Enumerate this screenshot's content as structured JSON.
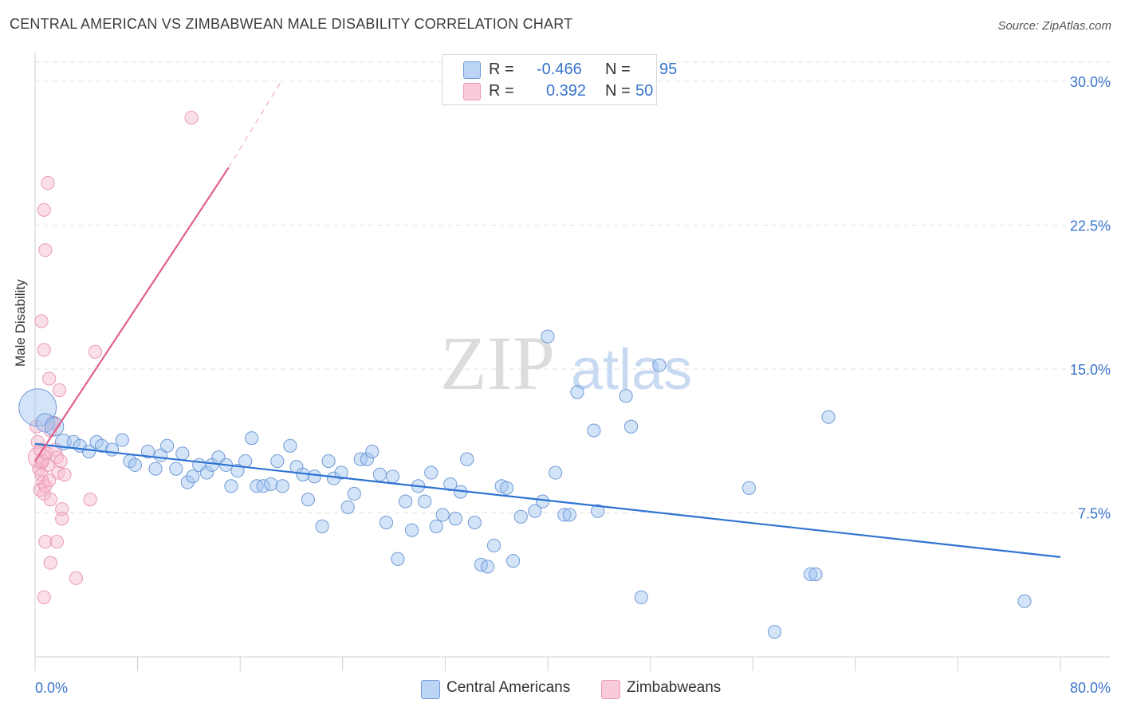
{
  "header": {
    "title": "CENTRAL AMERICAN VS ZIMBABWEAN MALE DISABILITY CORRELATION CHART",
    "source": "Source: ZipAtlas.com"
  },
  "watermark": {
    "zip": "ZIP",
    "atlas": "atlas"
  },
  "legend": {
    "r_label": "R =",
    "n_label": "N =",
    "rows": [
      {
        "name": "Central Americans",
        "r": "-0.466",
        "n": "95",
        "fill": "#a8c8f0",
        "stroke": "#5b8fd8"
      },
      {
        "name": "Zimbabweans",
        "r": "0.392",
        "n": "50",
        "fill": "#f8c0d0",
        "stroke": "#e888a8"
      }
    ]
  },
  "colors": {
    "blue_line": "#2e73d2",
    "pink_line": "#e0608a",
    "tick_label": "#3a74cc",
    "grid": "#e2e2e2"
  },
  "chart_data": {
    "type": "scatter",
    "title": "CENTRAL AMERICAN VS ZIMBABWEAN MALE DISABILITY CORRELATION CHART",
    "xlabel": "",
    "ylabel": "Male Disability",
    "xlim": [
      0,
      80
    ],
    "ylim": [
      0,
      31
    ],
    "x_tick_labels": [
      "0.0%",
      "80.0%"
    ],
    "y_ticks": [
      7.5,
      15.0,
      22.5,
      30.0
    ],
    "y_tick_labels": [
      "7.5%",
      "15.0%",
      "22.5%",
      "30.0%"
    ],
    "grid": true,
    "series": [
      {
        "name": "Central Americans",
        "color": "#a8c8f0",
        "trend": {
          "x0": 0,
          "y0": 11.1,
          "x1": 80,
          "y1": 5.2
        },
        "points": [
          [
            0.2,
            13.0,
            2.6
          ],
          [
            0.8,
            12.2,
            1.3
          ],
          [
            1.5,
            12.0,
            1.3
          ],
          [
            2.2,
            11.2,
            1.1
          ],
          [
            3.0,
            11.2,
            0.9
          ],
          [
            3.5,
            11.0,
            0.9
          ],
          [
            4.2,
            10.7,
            0.9
          ],
          [
            4.8,
            11.2,
            0.9
          ],
          [
            5.2,
            11.0,
            0.9
          ],
          [
            6.0,
            10.8,
            0.9
          ],
          [
            6.8,
            11.3,
            0.9
          ],
          [
            7.4,
            10.2,
            0.9
          ],
          [
            7.8,
            10.0,
            0.9
          ],
          [
            8.8,
            10.7,
            0.9
          ],
          [
            9.4,
            9.8,
            0.9
          ],
          [
            9.8,
            10.5,
            0.9
          ],
          [
            10.3,
            11.0,
            0.9
          ],
          [
            11.0,
            9.8,
            0.9
          ],
          [
            11.5,
            10.6,
            0.9
          ],
          [
            11.9,
            9.1,
            0.9
          ],
          [
            12.3,
            9.4,
            0.9
          ],
          [
            12.8,
            10.0,
            0.9
          ],
          [
            13.4,
            9.6,
            0.9
          ],
          [
            13.8,
            10.0,
            0.9
          ],
          [
            14.3,
            10.4,
            0.9
          ],
          [
            14.9,
            10.0,
            0.9
          ],
          [
            15.3,
            8.9,
            0.9
          ],
          [
            15.8,
            9.7,
            0.9
          ],
          [
            16.4,
            10.2,
            0.9
          ],
          [
            16.9,
            11.4,
            0.9
          ],
          [
            17.3,
            8.9,
            0.9
          ],
          [
            17.8,
            8.9,
            0.9
          ],
          [
            18.4,
            9.0,
            0.9
          ],
          [
            18.9,
            10.2,
            0.9
          ],
          [
            19.3,
            8.9,
            0.9
          ],
          [
            19.9,
            11.0,
            0.9
          ],
          [
            20.4,
            9.9,
            0.9
          ],
          [
            20.9,
            9.5,
            0.9
          ],
          [
            21.3,
            8.2,
            0.9
          ],
          [
            21.8,
            9.4,
            0.9
          ],
          [
            22.4,
            6.8,
            0.9
          ],
          [
            22.9,
            10.2,
            0.9
          ],
          [
            23.3,
            9.3,
            0.9
          ],
          [
            23.9,
            9.6,
            0.9
          ],
          [
            24.4,
            7.8,
            0.9
          ],
          [
            24.9,
            8.5,
            0.9
          ],
          [
            25.4,
            10.3,
            0.9
          ],
          [
            25.9,
            10.3,
            0.9
          ],
          [
            26.3,
            10.7,
            0.9
          ],
          [
            26.9,
            9.5,
            0.9
          ],
          [
            27.4,
            7.0,
            0.9
          ],
          [
            27.9,
            9.4,
            0.9
          ],
          [
            28.3,
            5.1,
            0.9
          ],
          [
            28.9,
            8.1,
            0.9
          ],
          [
            29.4,
            6.6,
            0.9
          ],
          [
            29.9,
            8.9,
            0.9
          ],
          [
            30.4,
            8.1,
            0.9
          ],
          [
            30.9,
            9.6,
            0.9
          ],
          [
            31.3,
            6.8,
            0.9
          ],
          [
            31.8,
            7.4,
            0.9
          ],
          [
            32.4,
            9.0,
            0.9
          ],
          [
            32.8,
            7.2,
            0.9
          ],
          [
            33.2,
            8.6,
            0.9
          ],
          [
            33.7,
            10.3,
            0.9
          ],
          [
            34.3,
            7.0,
            0.9
          ],
          [
            34.8,
            4.8,
            0.9
          ],
          [
            35.3,
            4.7,
            0.9
          ],
          [
            35.8,
            5.8,
            0.9
          ],
          [
            36.4,
            8.9,
            0.9
          ],
          [
            36.8,
            8.8,
            0.9
          ],
          [
            37.3,
            5.0,
            0.9
          ],
          [
            37.9,
            7.3,
            0.9
          ],
          [
            39.0,
            7.6,
            0.9
          ],
          [
            39.6,
            8.1,
            0.9
          ],
          [
            40.0,
            16.7,
            0.9
          ],
          [
            40.6,
            9.6,
            0.9
          ],
          [
            41.3,
            7.4,
            0.9
          ],
          [
            41.7,
            7.4,
            0.9
          ],
          [
            42.3,
            13.8,
            0.9
          ],
          [
            43.6,
            11.8,
            0.9
          ],
          [
            43.9,
            7.6,
            0.9
          ],
          [
            46.1,
            13.6,
            0.9
          ],
          [
            46.5,
            12.0,
            0.9
          ],
          [
            47.3,
            3.1,
            0.9
          ],
          [
            48.7,
            15.2,
            0.9
          ],
          [
            55.7,
            8.8,
            0.9
          ],
          [
            57.7,
            1.3,
            0.9
          ],
          [
            60.5,
            4.3,
            0.9
          ],
          [
            60.9,
            4.3,
            0.9
          ],
          [
            61.9,
            12.5,
            0.9
          ],
          [
            77.2,
            2.9,
            0.9
          ]
        ]
      },
      {
        "name": "Zimbabweans",
        "color": "#f8c0d0",
        "trend": {
          "x0": 0,
          "y0": 10.2,
          "x1": 15.1,
          "y1": 25.5
        },
        "trend_extension": {
          "x1": 19.2,
          "y1": 30.0
        },
        "points": [
          [
            0.3,
            10.4,
            1.5
          ],
          [
            0.1,
            12.0,
            0.9
          ],
          [
            0.2,
            11.2,
            0.9
          ],
          [
            0.4,
            10.8,
            0.9
          ],
          [
            0.5,
            10.1,
            0.9
          ],
          [
            0.3,
            9.8,
            0.9
          ],
          [
            0.5,
            9.5,
            0.9
          ],
          [
            0.6,
            9.1,
            0.9
          ],
          [
            0.4,
            8.7,
            0.9
          ],
          [
            0.7,
            8.5,
            0.9
          ],
          [
            0.8,
            8.9,
            0.9
          ],
          [
            0.6,
            10.2,
            0.9
          ],
          [
            0.9,
            10.6,
            0.9
          ],
          [
            1.0,
            10.0,
            0.9
          ],
          [
            1.1,
            9.2,
            0.9
          ],
          [
            1.2,
            11.8,
            0.9
          ],
          [
            0.5,
            17.5,
            0.9
          ],
          [
            0.7,
            16.0,
            0.9
          ],
          [
            0.8,
            21.2,
            0.9
          ],
          [
            0.7,
            23.3,
            0.9
          ],
          [
            1.0,
            24.7,
            0.9
          ],
          [
            1.1,
            14.5,
            0.9
          ],
          [
            1.3,
            12.2,
            0.9
          ],
          [
            1.5,
            12.2,
            0.9
          ],
          [
            1.2,
            8.2,
            0.9
          ],
          [
            1.6,
            10.8,
            0.9
          ],
          [
            1.7,
            10.4,
            0.9
          ],
          [
            1.8,
            9.6,
            0.9
          ],
          [
            1.9,
            13.9,
            0.9
          ],
          [
            2.0,
            10.2,
            0.9
          ],
          [
            2.1,
            7.7,
            0.9
          ],
          [
            2.1,
            7.2,
            0.9
          ],
          [
            2.3,
            9.5,
            0.9
          ],
          [
            0.8,
            6.0,
            0.9
          ],
          [
            1.7,
            6.0,
            0.9
          ],
          [
            1.2,
            4.9,
            0.9
          ],
          [
            0.7,
            3.1,
            0.9
          ],
          [
            3.2,
            4.1,
            0.9
          ],
          [
            4.3,
            8.2,
            0.9
          ],
          [
            4.7,
            15.9,
            0.9
          ],
          [
            12.2,
            28.1,
            0.9
          ]
        ]
      }
    ]
  }
}
